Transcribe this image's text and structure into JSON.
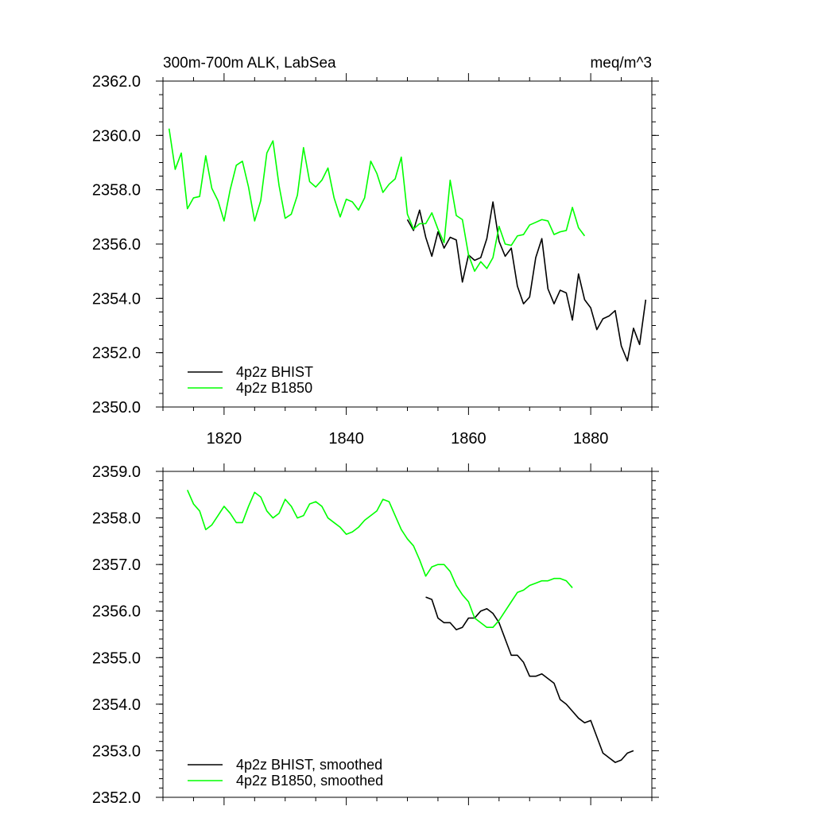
{
  "chart_data": [
    {
      "type": "line",
      "title": "300m-700m ALK, LabSea",
      "units": "meq/m^3",
      "xlim": [
        1810,
        1890
      ],
      "ylim": [
        2350.0,
        2362.0
      ],
      "y_tick_labels": [
        "2350.0",
        "2352.0",
        "2354.0",
        "2356.0",
        "2358.0",
        "2360.0",
        "2362.0"
      ],
      "x_tick_labels": [
        "1820",
        "1840",
        "1860",
        "1880"
      ],
      "legend_position": "bottom-left",
      "series": [
        {
          "name": "4p2z BHIST",
          "color": "#000000",
          "x": [
            1850,
            1851,
            1852,
            1853,
            1854,
            1855,
            1856,
            1857,
            1858,
            1859,
            1860,
            1861,
            1862,
            1863,
            1864,
            1865,
            1866,
            1867,
            1868,
            1869,
            1870,
            1871,
            1872,
            1873,
            1874,
            1875,
            1876,
            1877,
            1878,
            1879,
            1880,
            1881,
            1882,
            1883,
            1884,
            1885,
            1886,
            1887,
            1888,
            1889
          ],
          "values": [
            2356.9,
            2356.5,
            2357.25,
            2356.25,
            2355.55,
            2356.45,
            2355.85,
            2356.25,
            2356.15,
            2354.6,
            2355.6,
            2355.4,
            2355.5,
            2356.2,
            2357.55,
            2356.1,
            2355.55,
            2355.85,
            2354.45,
            2353.8,
            2354.05,
            2355.5,
            2356.2,
            2354.35,
            2353.8,
            2354.3,
            2354.2,
            2353.2,
            2354.9,
            2353.95,
            2353.65,
            2352.85,
            2353.25,
            2353.35,
            2353.55,
            2352.25,
            2351.7,
            2352.9,
            2352.3,
            2353.95
          ]
        },
        {
          "name": "4p2z B1850",
          "color": "#00ff00",
          "x": [
            1811,
            1812,
            1813,
            1814,
            1815,
            1816,
            1817,
            1818,
            1819,
            1820,
            1821,
            1822,
            1823,
            1824,
            1825,
            1826,
            1827,
            1828,
            1829,
            1830,
            1831,
            1832,
            1833,
            1834,
            1835,
            1836,
            1837,
            1838,
            1839,
            1840,
            1841,
            1842,
            1843,
            1844,
            1845,
            1846,
            1847,
            1848,
            1849,
            1850,
            1851,
            1852,
            1853,
            1854,
            1855,
            1856,
            1857,
            1858,
            1859,
            1860,
            1861,
            1862,
            1863,
            1864,
            1865,
            1866,
            1867,
            1868,
            1869,
            1870,
            1871,
            1872,
            1873,
            1874,
            1875,
            1876,
            1877,
            1878,
            1879
          ],
          "values": [
            2360.25,
            2358.75,
            2359.35,
            2357.3,
            2357.7,
            2357.75,
            2359.25,
            2358.05,
            2357.6,
            2356.85,
            2358.0,
            2358.9,
            2359.05,
            2358.1,
            2356.85,
            2357.6,
            2359.35,
            2359.8,
            2358.15,
            2356.95,
            2357.1,
            2357.8,
            2359.55,
            2358.3,
            2358.1,
            2358.35,
            2358.8,
            2357.7,
            2357.0,
            2357.65,
            2357.55,
            2357.25,
            2357.7,
            2359.05,
            2358.6,
            2357.9,
            2358.2,
            2358.4,
            2359.2,
            2357.1,
            2356.55,
            2356.75,
            2356.75,
            2357.15,
            2356.55,
            2356.05,
            2358.35,
            2357.05,
            2356.9,
            2355.6,
            2355.0,
            2355.35,
            2355.1,
            2355.5,
            2356.65,
            2356.0,
            2355.95,
            2356.3,
            2356.35,
            2356.7,
            2356.8,
            2356.9,
            2356.85,
            2356.35,
            2356.45,
            2356.5,
            2357.35,
            2356.6,
            2356.3
          ]
        }
      ]
    },
    {
      "type": "line",
      "xlim": [
        1810,
        1890
      ],
      "ylim": [
        2352.0,
        2359.0
      ],
      "y_tick_labels": [
        "2352.0",
        "2353.0",
        "2354.0",
        "2355.0",
        "2356.0",
        "2357.0",
        "2358.0",
        "2359.0"
      ],
      "legend_position": "bottom-left",
      "series": [
        {
          "name": "4p2z BHIST, smoothed",
          "color": "#000000",
          "x": [
            1853,
            1854,
            1855,
            1856,
            1857,
            1858,
            1859,
            1860,
            1861,
            1862,
            1863,
            1864,
            1865,
            1866,
            1867,
            1868,
            1869,
            1870,
            1871,
            1872,
            1873,
            1874,
            1875,
            1876,
            1877,
            1878,
            1879,
            1880,
            1881,
            1882,
            1883,
            1884,
            1885,
            1886,
            1887
          ],
          "values": [
            2356.3,
            2356.25,
            2355.85,
            2355.75,
            2355.75,
            2355.6,
            2355.65,
            2355.85,
            2355.85,
            2356.0,
            2356.05,
            2355.95,
            2355.75,
            2355.4,
            2355.05,
            2355.05,
            2354.9,
            2354.6,
            2354.6,
            2354.65,
            2354.55,
            2354.45,
            2354.1,
            2354.0,
            2353.85,
            2353.7,
            2353.6,
            2353.65,
            2353.3,
            2352.95,
            2352.85,
            2352.75,
            2352.8,
            2352.95,
            2353.0
          ]
        },
        {
          "name": "4p2z B1850, smoothed",
          "color": "#00ff00",
          "x": [
            1814,
            1815,
            1816,
            1817,
            1818,
            1819,
            1820,
            1821,
            1822,
            1823,
            1824,
            1825,
            1826,
            1827,
            1828,
            1829,
            1830,
            1831,
            1832,
            1833,
            1834,
            1835,
            1836,
            1837,
            1838,
            1839,
            1840,
            1841,
            1842,
            1843,
            1844,
            1845,
            1846,
            1847,
            1848,
            1849,
            1850,
            1851,
            1852,
            1853,
            1854,
            1855,
            1856,
            1857,
            1858,
            1859,
            1860,
            1861,
            1862,
            1863,
            1864,
            1865,
            1866,
            1867,
            1868,
            1869,
            1870,
            1871,
            1872,
            1873,
            1874,
            1875,
            1876,
            1877
          ],
          "values": [
            2358.6,
            2358.3,
            2358.15,
            2357.75,
            2357.85,
            2358.05,
            2358.25,
            2358.1,
            2357.9,
            2357.9,
            2358.25,
            2358.55,
            2358.45,
            2358.15,
            2358.0,
            2358.1,
            2358.4,
            2358.25,
            2358.0,
            2358.05,
            2358.3,
            2358.35,
            2358.25,
            2358.0,
            2357.9,
            2357.8,
            2357.65,
            2357.7,
            2357.8,
            2357.95,
            2358.05,
            2358.15,
            2358.4,
            2358.35,
            2358.05,
            2357.75,
            2357.55,
            2357.4,
            2357.1,
            2356.75,
            2356.95,
            2357.0,
            2357.0,
            2356.85,
            2356.55,
            2356.35,
            2356.2,
            2355.85,
            2355.75,
            2355.65,
            2355.65,
            2355.8,
            2356.0,
            2356.2,
            2356.4,
            2356.45,
            2356.55,
            2356.6,
            2356.65,
            2356.65,
            2356.7,
            2356.7,
            2356.65,
            2356.5
          ]
        }
      ]
    }
  ]
}
